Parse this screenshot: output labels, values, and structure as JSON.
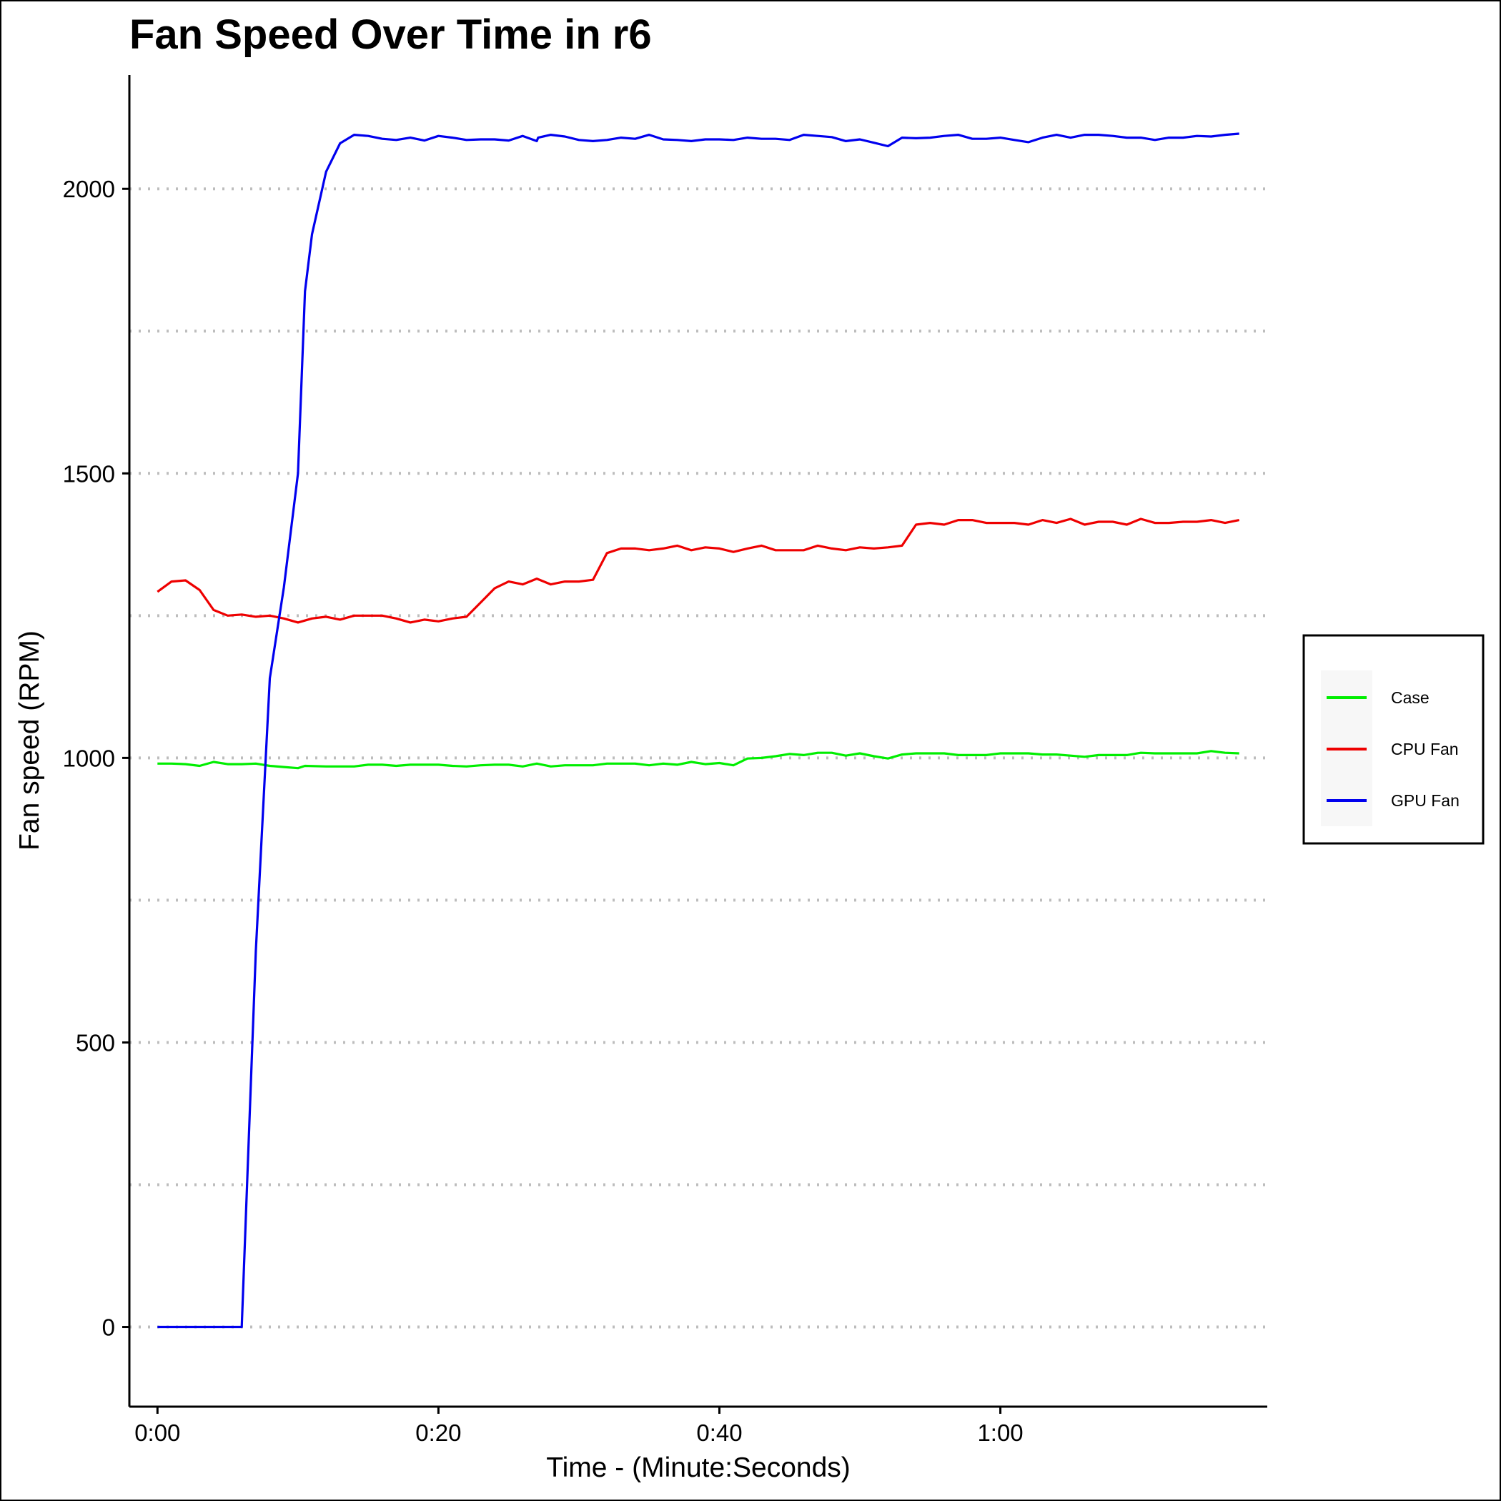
{
  "chart_data": {
    "type": "line",
    "title": "Fan Speed Over Time in r6",
    "xlabel": "Time - (Minute:Seconds)",
    "ylabel": "Fan speed (RPM)",
    "x_unit": "seconds",
    "xlim": [
      -2,
      79
    ],
    "ylim": [
      -140,
      2200
    ],
    "x_ticks": [
      {
        "value": 0,
        "label": "0:00"
      },
      {
        "value": 20,
        "label": "0:20"
      },
      {
        "value": 40,
        "label": "0:40"
      },
      {
        "value": 60,
        "label": "1:00"
      }
    ],
    "y_ticks": [
      {
        "value": 0,
        "label": "0"
      },
      {
        "value": 500,
        "label": "500"
      },
      {
        "value": 1000,
        "label": "1000"
      },
      {
        "value": 1500,
        "label": "1500"
      },
      {
        "value": 2000,
        "label": "2000"
      }
    ],
    "gridlines_y": [
      0,
      250,
      500,
      750,
      1000,
      1250,
      1500,
      1750,
      2000
    ],
    "grid": "horizontal dotted",
    "legend_position": "right",
    "series": [
      {
        "name": "Case",
        "color": "#00ee00",
        "points": [
          [
            0,
            990
          ],
          [
            1,
            990
          ],
          [
            2,
            989
          ],
          [
            3,
            986
          ],
          [
            4,
            993
          ],
          [
            5,
            989
          ],
          [
            6,
            989
          ],
          [
            7,
            990
          ],
          [
            8,
            986
          ],
          [
            9,
            984
          ],
          [
            10,
            982
          ],
          [
            10.5,
            986
          ],
          [
            12,
            985
          ],
          [
            14,
            985
          ],
          [
            15,
            988
          ],
          [
            16,
            988
          ],
          [
            17,
            986
          ],
          [
            18,
            988
          ],
          [
            19,
            988
          ],
          [
            20,
            988
          ],
          [
            21,
            986
          ],
          [
            22,
            985
          ],
          [
            23,
            987
          ],
          [
            24,
            988
          ],
          [
            25,
            988
          ],
          [
            26,
            985
          ],
          [
            27,
            990
          ],
          [
            28,
            985
          ],
          [
            29,
            987
          ],
          [
            30,
            987
          ],
          [
            31,
            987
          ],
          [
            32,
            990
          ],
          [
            33,
            990
          ],
          [
            34,
            990
          ],
          [
            35,
            987
          ],
          [
            36,
            990
          ],
          [
            37,
            988
          ],
          [
            38,
            993
          ],
          [
            39,
            989
          ],
          [
            40,
            991
          ],
          [
            41,
            987
          ],
          [
            42,
            999
          ],
          [
            43,
            1000
          ],
          [
            44,
            1003
          ],
          [
            45,
            1007
          ],
          [
            46,
            1005
          ],
          [
            47,
            1009
          ],
          [
            48,
            1009
          ],
          [
            49,
            1004
          ],
          [
            50,
            1008
          ],
          [
            51,
            1003
          ],
          [
            52,
            999
          ],
          [
            53,
            1006
          ],
          [
            54,
            1008
          ],
          [
            56,
            1008
          ],
          [
            57,
            1005
          ],
          [
            58,
            1005
          ],
          [
            59,
            1005
          ],
          [
            60,
            1008
          ],
          [
            62,
            1008
          ],
          [
            63,
            1006
          ],
          [
            64,
            1006
          ],
          [
            65,
            1004
          ],
          [
            66,
            1002
          ],
          [
            67,
            1005
          ],
          [
            68,
            1005
          ],
          [
            69,
            1005
          ],
          [
            70,
            1009
          ],
          [
            71,
            1008
          ],
          [
            73,
            1008
          ],
          [
            74,
            1008
          ],
          [
            75,
            1012
          ],
          [
            76,
            1009
          ],
          [
            77,
            1008
          ]
        ]
      },
      {
        "name": "CPU Fan",
        "color": "#ee0000",
        "points": [
          [
            0,
            1292
          ],
          [
            1,
            1310
          ],
          [
            2,
            1312
          ],
          [
            3,
            1295
          ],
          [
            4,
            1260
          ],
          [
            5,
            1250
          ],
          [
            6,
            1252
          ],
          [
            7,
            1248
          ],
          [
            8,
            1250
          ],
          [
            9,
            1245
          ],
          [
            10,
            1238
          ],
          [
            11,
            1245
          ],
          [
            12,
            1248
          ],
          [
            13,
            1243
          ],
          [
            14,
            1250
          ],
          [
            15,
            1250
          ],
          [
            16,
            1250
          ],
          [
            17,
            1245
          ],
          [
            18,
            1238
          ],
          [
            19,
            1243
          ],
          [
            20,
            1240
          ],
          [
            21,
            1245
          ],
          [
            22,
            1248
          ],
          [
            23,
            1273
          ],
          [
            24,
            1298
          ],
          [
            25,
            1310
          ],
          [
            26,
            1305
          ],
          [
            27,
            1315
          ],
          [
            28,
            1305
          ],
          [
            29,
            1310
          ],
          [
            30,
            1310
          ],
          [
            31,
            1313
          ],
          [
            32,
            1360
          ],
          [
            33,
            1368
          ],
          [
            34,
            1368
          ],
          [
            35,
            1365
          ],
          [
            36,
            1368
          ],
          [
            37,
            1373
          ],
          [
            38,
            1365
          ],
          [
            39,
            1370
          ],
          [
            40,
            1368
          ],
          [
            41,
            1362
          ],
          [
            42,
            1368
          ],
          [
            43,
            1373
          ],
          [
            44,
            1365
          ],
          [
            45,
            1365
          ],
          [
            46,
            1365
          ],
          [
            47,
            1373
          ],
          [
            48,
            1368
          ],
          [
            49,
            1365
          ],
          [
            50,
            1370
          ],
          [
            51,
            1368
          ],
          [
            52,
            1370
          ],
          [
            53,
            1373
          ],
          [
            54,
            1410
          ],
          [
            55,
            1413
          ],
          [
            56,
            1410
          ],
          [
            57,
            1418
          ],
          [
            58,
            1418
          ],
          [
            59,
            1413
          ],
          [
            60,
            1413
          ],
          [
            61,
            1413
          ],
          [
            62,
            1410
          ],
          [
            63,
            1418
          ],
          [
            64,
            1413
          ],
          [
            65,
            1420
          ],
          [
            66,
            1410
          ],
          [
            67,
            1415
          ],
          [
            68,
            1415
          ],
          [
            69,
            1410
          ],
          [
            70,
            1420
          ],
          [
            71,
            1413
          ],
          [
            72,
            1413
          ],
          [
            73,
            1415
          ],
          [
            74,
            1415
          ],
          [
            75,
            1418
          ],
          [
            76,
            1413
          ],
          [
            77,
            1418
          ]
        ]
      },
      {
        "name": "GPU Fan",
        "color": "#0000ee",
        "points": [
          [
            0,
            0
          ],
          [
            1,
            0
          ],
          [
            2,
            0
          ],
          [
            3,
            0
          ],
          [
            4,
            0
          ],
          [
            5,
            0
          ],
          [
            6,
            0
          ],
          [
            7,
            660
          ],
          [
            8,
            1140
          ],
          [
            9,
            1300
          ],
          [
            10,
            1500
          ],
          [
            10.5,
            1820
          ],
          [
            11,
            1920
          ],
          [
            12,
            2030
          ],
          [
            13,
            2080
          ],
          [
            14,
            2095
          ],
          [
            15,
            2093
          ],
          [
            16,
            2088
          ],
          [
            17,
            2086
          ],
          [
            18,
            2090
          ],
          [
            19,
            2085
          ],
          [
            20,
            2093
          ],
          [
            21,
            2090
          ],
          [
            22,
            2086
          ],
          [
            23,
            2087
          ],
          [
            24,
            2087
          ],
          [
            25,
            2085
          ],
          [
            26,
            2093
          ],
          [
            27,
            2084
          ],
          [
            27.1,
            2090
          ],
          [
            28,
            2095
          ],
          [
            29,
            2092
          ],
          [
            30,
            2086
          ],
          [
            31,
            2084
          ],
          [
            32,
            2086
          ],
          [
            33,
            2090
          ],
          [
            34,
            2088
          ],
          [
            35,
            2095
          ],
          [
            36,
            2087
          ],
          [
            37,
            2086
          ],
          [
            38,
            2084
          ],
          [
            39,
            2087
          ],
          [
            40,
            2087
          ],
          [
            41,
            2086
          ],
          [
            42,
            2090
          ],
          [
            43,
            2088
          ],
          [
            44,
            2088
          ],
          [
            45,
            2086
          ],
          [
            46,
            2095
          ],
          [
            47,
            2093
          ],
          [
            48,
            2091
          ],
          [
            49,
            2084
          ],
          [
            50,
            2087
          ],
          [
            51,
            2081
          ],
          [
            52,
            2075
          ],
          [
            53,
            2090
          ],
          [
            54,
            2089
          ],
          [
            55,
            2090
          ],
          [
            56,
            2093
          ],
          [
            57,
            2095
          ],
          [
            58,
            2088
          ],
          [
            59,
            2088
          ],
          [
            60,
            2090
          ],
          [
            61,
            2086
          ],
          [
            62,
            2082
          ],
          [
            63,
            2090
          ],
          [
            64,
            2095
          ],
          [
            65,
            2090
          ],
          [
            66,
            2095
          ],
          [
            67,
            2095
          ],
          [
            68,
            2093
          ],
          [
            69,
            2090
          ],
          [
            70,
            2090
          ],
          [
            71,
            2086
          ],
          [
            72,
            2090
          ],
          [
            73,
            2090
          ],
          [
            74,
            2093
          ],
          [
            75,
            2092
          ],
          [
            76,
            2095
          ],
          [
            77,
            2097
          ]
        ]
      }
    ]
  }
}
